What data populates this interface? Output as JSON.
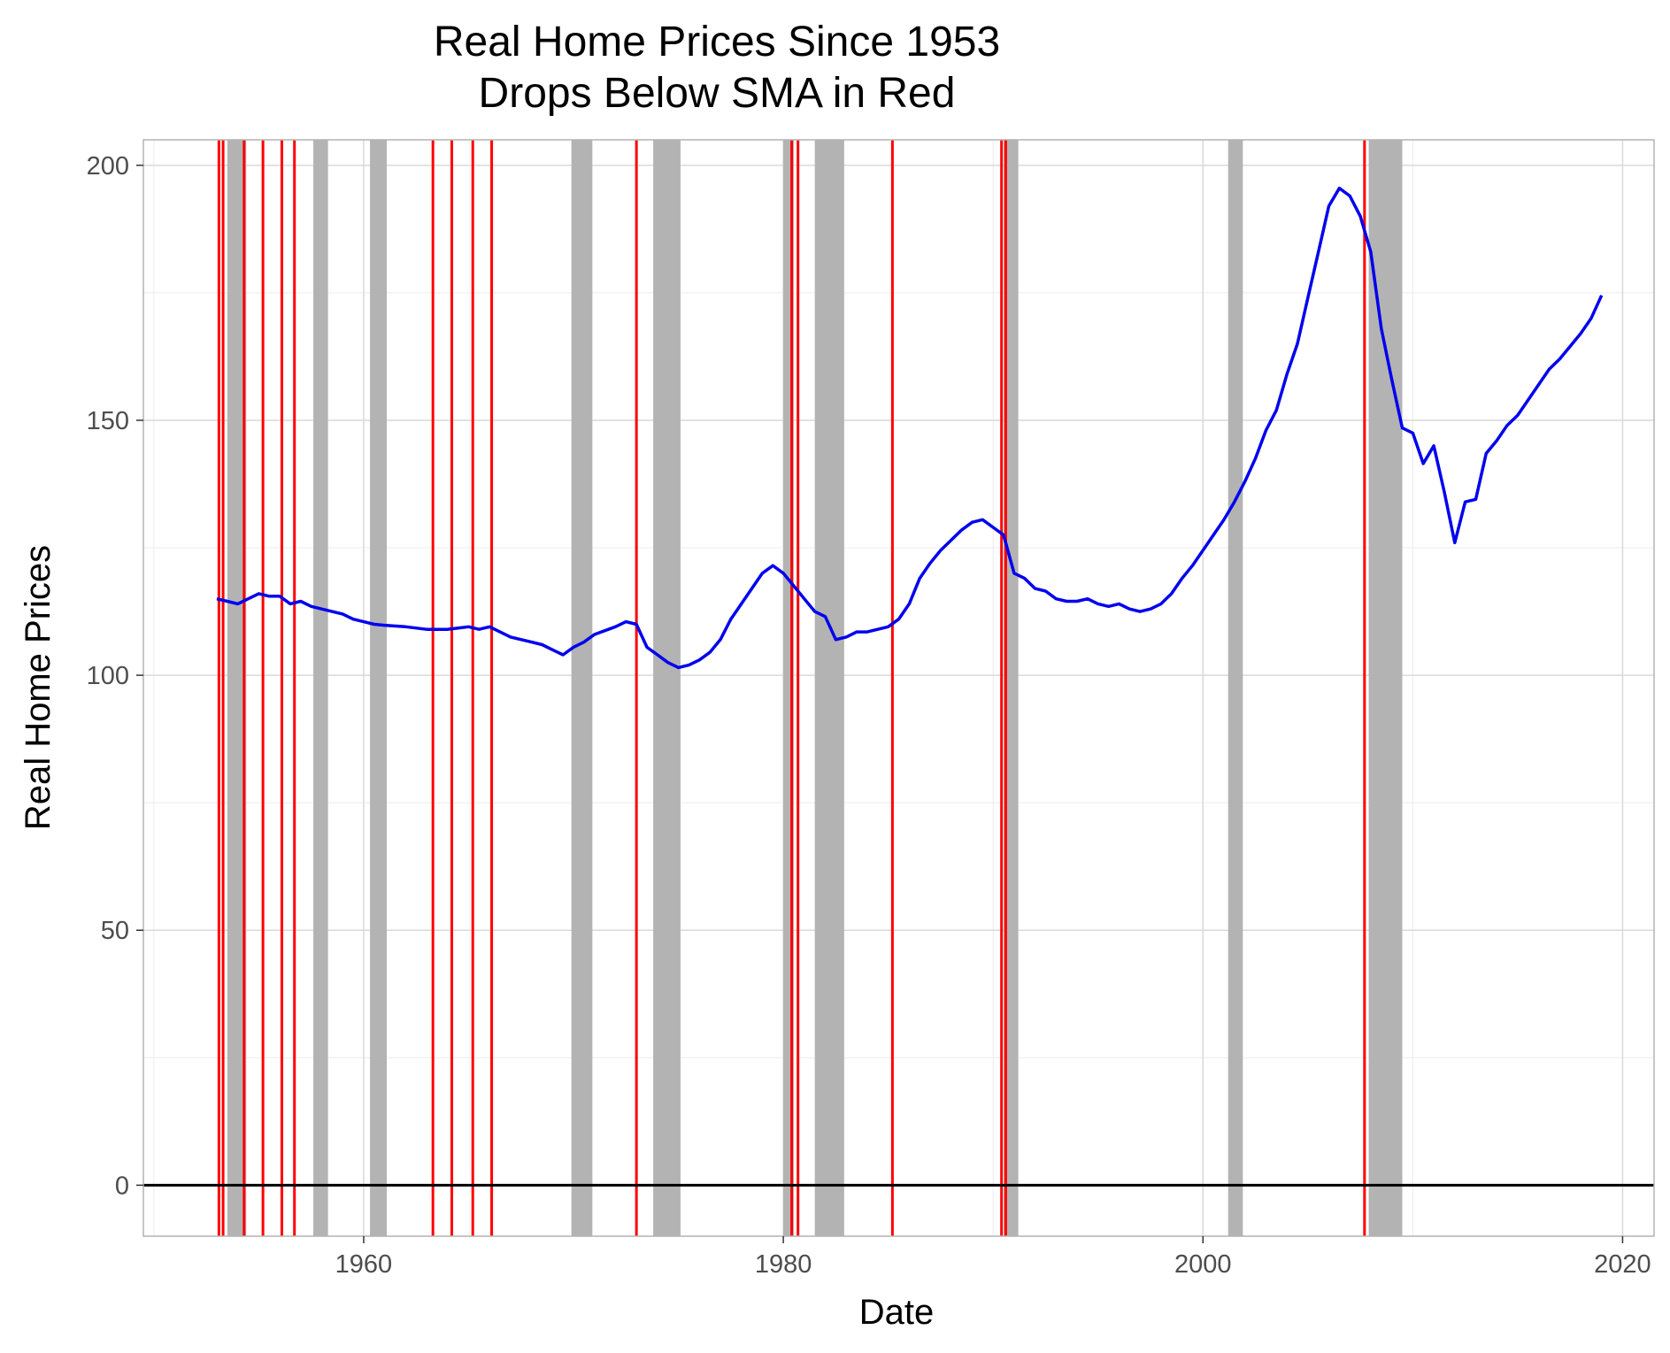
{
  "chart_data": {
    "type": "line",
    "title": "Real Home Prices Since 1953",
    "subtitle": "Drops Below SMA in Red",
    "xlabel": "Date",
    "ylabel": "Real Home Prices",
    "xlim": [
      1949.5,
      2021.5
    ],
    "ylim": [
      -10,
      205
    ],
    "x_ticks": [
      1960,
      1980,
      2000,
      2020
    ],
    "y_ticks": [
      0,
      50,
      100,
      150,
      200
    ],
    "grid": true,
    "hline": 0,
    "colors": {
      "line": "#0000ee",
      "signal": "#ff0000",
      "recession": "#b3b3b3",
      "zero": "#000000",
      "grid_major": "#d9d9d9",
      "grid_minor": "#ececec",
      "panel_border": "#b3b3b3"
    },
    "recessions": [
      [
        1953.5,
        1954.4
      ],
      [
        1957.6,
        1958.3
      ],
      [
        1960.3,
        1961.1
      ],
      [
        1969.9,
        1970.9
      ],
      [
        1973.8,
        1975.1
      ],
      [
        1980.0,
        1980.5
      ],
      [
        1981.5,
        1982.9
      ],
      [
        1990.5,
        1991.2
      ],
      [
        2001.2,
        2001.9
      ],
      [
        2007.9,
        2009.5
      ]
    ],
    "signals": [
      1953.1,
      1953.3,
      1954.3,
      1955.2,
      1956.1,
      1956.7,
      1963.3,
      1964.2,
      1965.2,
      1966.1,
      1973.0,
      1980.4,
      1980.7,
      1985.2,
      1990.4,
      1990.6,
      2007.7
    ],
    "series": [
      {
        "x": [
          1953.0,
          1953.5,
          1954.0,
          1954.5,
          1955.0,
          1955.5,
          1956.0,
          1956.5,
          1957.0,
          1957.5,
          1958.0,
          1958.5,
          1959.0,
          1959.5,
          1960.0,
          1960.5,
          1961.0,
          1962.0,
          1963.0,
          1964.0,
          1965.0,
          1965.5,
          1966.0,
          1967.0,
          1968.0,
          1968.5,
          1969.0,
          1969.5,
          1970.0,
          1970.5,
          1971.0,
          1972.0,
          1972.5,
          1973.0,
          1973.5,
          1974.0,
          1974.5,
          1975.0,
          1975.5,
          1976.0,
          1976.5,
          1977.0,
          1977.5,
          1978.0,
          1978.5,
          1979.0,
          1979.5,
          1980.0,
          1980.5,
          1981.0,
          1981.5,
          1982.0,
          1982.5,
          1983.0,
          1983.5,
          1984.0,
          1985.0,
          1985.5,
          1986.0,
          1986.5,
          1987.0,
          1987.5,
          1988.0,
          1988.5,
          1989.0,
          1989.5,
          1990.0,
          1990.5,
          1991.0,
          1991.5,
          1992.0,
          1992.5,
          1993.0,
          1993.5,
          1994.0,
          1994.5,
          1995.0,
          1995.5,
          1996.0,
          1996.5,
          1997.0,
          1997.5,
          1998.0,
          1998.5,
          1999.0,
          1999.5,
          2000.0,
          2000.5,
          2001.0,
          2001.5,
          2002.0,
          2002.5,
          2003.0,
          2003.5,
          2004.0,
          2004.5,
          2005.0,
          2005.5,
          2006.0,
          2006.5,
          2007.0,
          2007.5,
          2008.0,
          2008.5,
          2009.0,
          2009.5,
          2010.0,
          2010.5,
          2011.0,
          2011.5,
          2012.0,
          2012.5,
          2013.0,
          2013.5,
          2014.0,
          2014.5,
          2015.0,
          2015.5,
          2016.0,
          2016.5,
          2017.0,
          2017.5,
          2018.0,
          2018.5,
          2019.0
        ],
        "y": [
          115.0,
          114.5,
          114.0,
          115.0,
          116.0,
          115.5,
          115.5,
          114.0,
          114.5,
          113.5,
          113.0,
          112.5,
          112.0,
          111.0,
          110.5,
          110.0,
          109.8,
          109.5,
          109.0,
          109.0,
          109.5,
          109.0,
          109.5,
          107.5,
          106.5,
          106.0,
          105.0,
          104.0,
          105.5,
          106.5,
          108.0,
          109.5,
          110.5,
          110.0,
          105.5,
          104.0,
          102.5,
          101.5,
          102.0,
          103.0,
          104.5,
          107.0,
          111.0,
          114.0,
          117.0,
          120.0,
          121.5,
          120.0,
          117.5,
          115.0,
          112.5,
          111.5,
          107.0,
          107.5,
          108.5,
          108.5,
          109.5,
          111.0,
          114.0,
          119.0,
          122.0,
          124.5,
          126.5,
          128.5,
          130.0,
          130.5,
          129.0,
          127.5,
          120.0,
          119.0,
          117.0,
          116.5,
          115.0,
          114.5,
          114.5,
          115.0,
          114.0,
          113.5,
          114.0,
          113.0,
          112.5,
          113.0,
          114.0,
          116.0,
          119.0,
          121.5,
          124.5,
          127.5,
          130.5,
          134.0,
          138.0,
          142.5,
          148.0,
          152.0,
          159.0,
          165.0,
          174.0,
          183.0,
          192.0,
          195.5,
          194.0,
          190.0,
          183.0,
          168.0,
          158.0,
          148.5,
          147.5,
          141.5,
          145.0,
          136.0,
          126.0,
          134.0,
          134.5,
          143.5,
          146.0,
          149.0,
          151.0,
          154.0,
          157.0,
          160.0,
          162.0,
          164.5,
          167.0,
          170.0,
          174.5
        ]
      }
    ]
  }
}
